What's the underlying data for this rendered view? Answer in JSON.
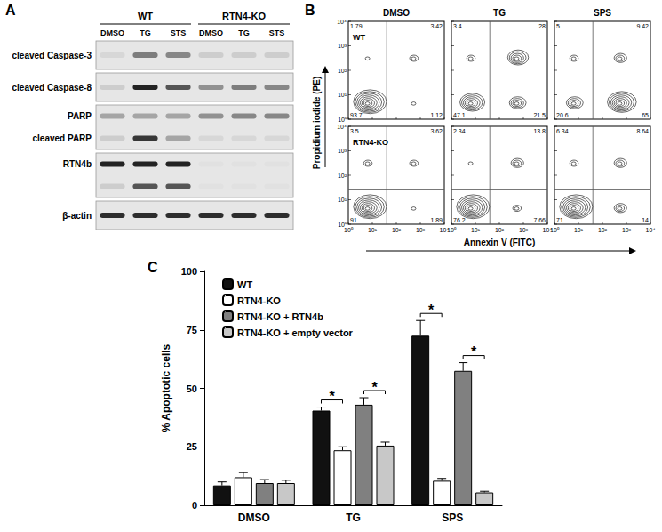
{
  "panel_labels": [
    "A",
    "B",
    "C"
  ],
  "blot": {
    "groups": [
      {
        "label": "WT",
        "lanes": [
          "DMSO",
          "TG",
          "STS"
        ]
      },
      {
        "label": "RTN4-KO",
        "lanes": [
          "DMSO",
          "TG",
          "STS"
        ]
      }
    ],
    "rows": [
      {
        "bands": [
          {
            "label": "cleaved Caspase-3",
            "intensity": [
              0.05,
              0.5,
              0.45,
              0.1,
              0.1,
              0.1
            ]
          }
        ]
      },
      {
        "bands": [
          {
            "label": "cleaved Caspase-8",
            "intensity": [
              0.1,
              0.95,
              0.7,
              0.4,
              0.5,
              0.45
            ]
          }
        ]
      },
      {
        "bands": [
          {
            "label": "PARP",
            "intensity": [
              0.3,
              0.3,
              0.3,
              0.4,
              0.45,
              0.45
            ]
          },
          {
            "label": "cleaved PARP",
            "intensity": [
              0.1,
              0.85,
              0.3,
              0.05,
              0.05,
              0.05
            ]
          }
        ]
      },
      {
        "bands": [
          {
            "label": "RTN4b",
            "intensity": [
              0.95,
              0.95,
              0.95,
              0,
              0,
              0
            ]
          },
          {
            "label": null,
            "intensity": [
              0.1,
              0.7,
              0.7,
              0,
              0,
              0
            ]
          }
        ]
      },
      {
        "bands": [
          {
            "label": "β-actin",
            "intensity": [
              0.9,
              0.9,
              0.9,
              0.9,
              0.9,
              0.9
            ]
          }
        ]
      }
    ]
  },
  "flow": {
    "xlabel": "Annexin V (FITC)",
    "ylabel": "Propidium iodide (PE)",
    "axis_ticks": [
      "10⁰",
      "10¹",
      "10²",
      "10³",
      "10⁴"
    ],
    "columns": [
      "DMSO",
      "TG",
      "SPS"
    ],
    "rows": [
      {
        "label": "WT",
        "plots": [
          {
            "UL": 1.79,
            "UR": 3.42,
            "LL": 93.7,
            "LR": 1.12
          },
          {
            "UL": 3.4,
            "UR": 28,
            "LL": 47.1,
            "LR": 21.5
          },
          {
            "UL": 5,
            "UR": 9.42,
            "LL": 20.6,
            "LR": 65
          }
        ]
      },
      {
        "label": "RTN4-KO",
        "plots": [
          {
            "UL": 3.5,
            "UR": 3.62,
            "LL": 91,
            "LR": 1.89
          },
          {
            "UL": 2.34,
            "UR": 13.8,
            "LL": 76.2,
            "LR": 7.66
          },
          {
            "UL": 6.34,
            "UR": 8.64,
            "LL": 71,
            "LR": 14
          }
        ]
      }
    ]
  },
  "chart_data": {
    "type": "bar",
    "ylabel": "% Apoptotic cells",
    "categories": [
      "DMSO",
      "TG",
      "SPS"
    ],
    "series": [
      {
        "name": "WT",
        "color": "#111111",
        "values": [
          8.5,
          40.5,
          72.5
        ],
        "errors": [
          1.5,
          1.5,
          6.5
        ]
      },
      {
        "name": "RTN4-KO",
        "color": "#ffffff",
        "values": [
          12,
          23.5,
          10.5
        ],
        "errors": [
          2,
          1.5,
          1
        ]
      },
      {
        "name": "RTN4-KO + RTN4b",
        "color": "#808080",
        "values": [
          9.5,
          43,
          57.5
        ],
        "errors": [
          1.5,
          3,
          3.5
        ]
      },
      {
        "name": "RTN4-KO + empty vector",
        "color": "#c8c8c8",
        "values": [
          9.5,
          25.5,
          5.5
        ],
        "errors": [
          1.2,
          1.5,
          0.5
        ]
      }
    ],
    "ylim": [
      0,
      100
    ],
    "yticks": [
      0,
      25,
      50,
      75,
      100
    ],
    "grid": false,
    "legend": "upper left",
    "annotations": [
      {
        "category": "TG",
        "between": [
          "WT",
          "RTN4-KO"
        ],
        "text": "*"
      },
      {
        "category": "TG",
        "between": [
          "RTN4-KO + RTN4b",
          "RTN4-KO + empty vector"
        ],
        "text": "*"
      },
      {
        "category": "SPS",
        "between": [
          "WT",
          "RTN4-KO"
        ],
        "text": "*"
      },
      {
        "category": "SPS",
        "between": [
          "RTN4-KO + RTN4b",
          "RTN4-KO + empty vector"
        ],
        "text": "*"
      }
    ]
  }
}
